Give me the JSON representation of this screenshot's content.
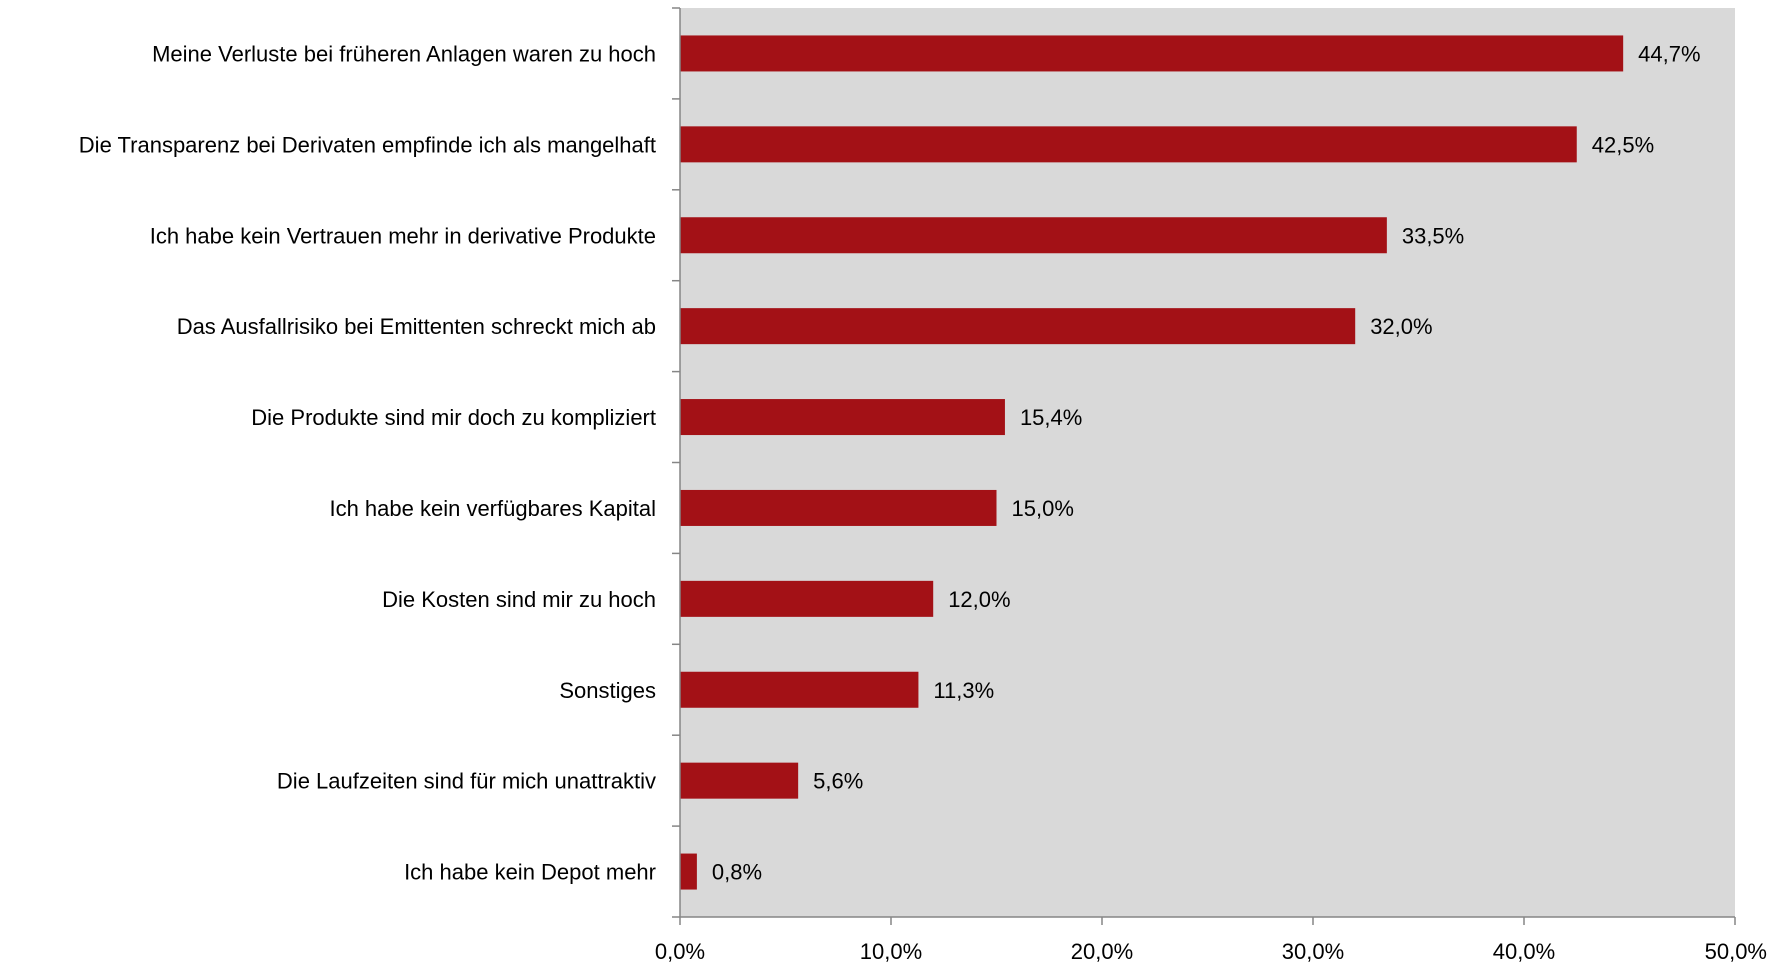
{
  "chart_data": {
    "type": "bar",
    "orientation": "horizontal",
    "title": "",
    "xlabel": "",
    "ylabel": "",
    "categories": [
      "Meine Verluste bei früheren Anlagen waren zu hoch",
      "Die Transparenz bei Derivaten empfinde ich als mangelhaft",
      "Ich habe kein Vertrauen mehr in derivative Produkte",
      "Das Ausfallrisiko bei Emittenten schreckt mich ab",
      "Die Produkte sind mir doch zu kompliziert",
      "Ich habe kein verfügbares Kapital",
      "Die Kosten sind mir zu hoch",
      "Sonstiges",
      "Die Laufzeiten sind für mich unattraktiv",
      "Ich habe kein Depot mehr"
    ],
    "values": [
      44.7,
      42.5,
      33.5,
      32.0,
      15.4,
      15.0,
      12.0,
      11.3,
      5.6,
      0.8
    ],
    "value_labels": [
      "44,7%",
      "42,5%",
      "33,5%",
      "32,0%",
      "15,4%",
      "15,0%",
      "12,0%",
      "11,3%",
      "5,6%",
      "0,8%"
    ],
    "xlim": [
      0,
      50
    ],
    "xticks": [
      0,
      10,
      20,
      30,
      40,
      50
    ],
    "xtick_labels": [
      "0,0%",
      "10,0%",
      "20,0%",
      "30,0%",
      "40,0%",
      "50,0%"
    ],
    "grid": false,
    "legend": "none",
    "colors": {
      "bar": "#A31116",
      "plot_background": "#D9D9D9",
      "axis": "#868686"
    }
  }
}
